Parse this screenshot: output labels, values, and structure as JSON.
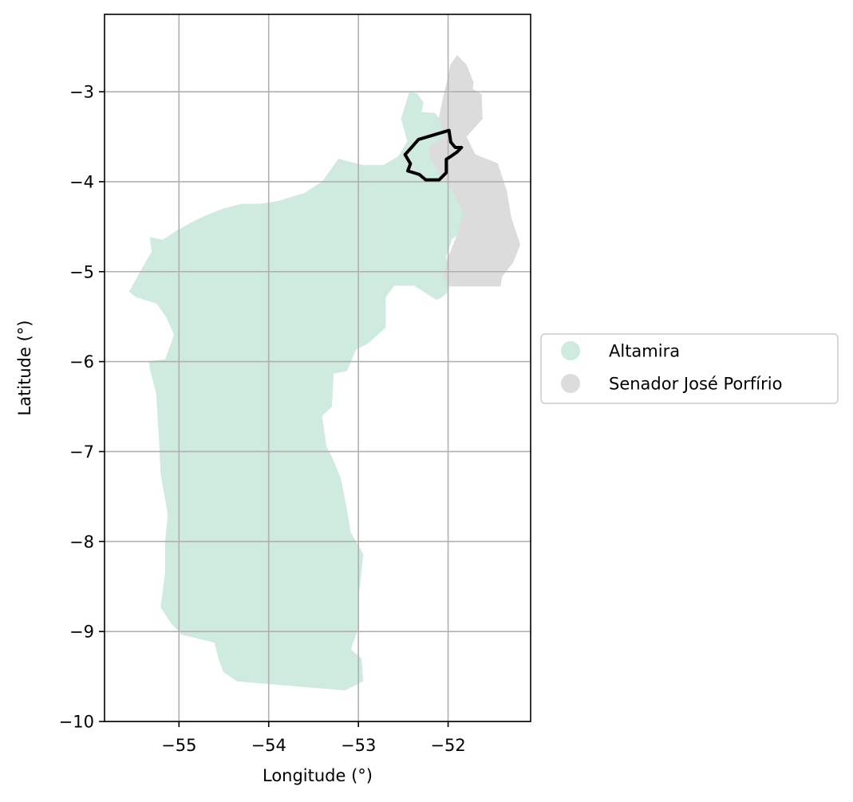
{
  "chart_data": {
    "type": "map",
    "xlabel": "Longitude (°)",
    "ylabel": "Latitude (°)",
    "xlim": [
      -55.83,
      -51.08
    ],
    "ylim": [
      -10,
      -2.14
    ],
    "xticks": [
      -55,
      -54,
      -53,
      -52
    ],
    "xtick_labels": [
      "−55",
      "−54",
      "−53",
      "−52"
    ],
    "yticks": [
      -3,
      -4,
      -5,
      -6,
      -7,
      -8,
      -9,
      -10
    ],
    "ytick_labels": [
      "−3",
      "−4",
      "−5",
      "−6",
      "−7",
      "−8",
      "−9",
      "−10"
    ],
    "grid": true,
    "legend": {
      "placement": "center-right, outside axes",
      "entries": [
        {
          "name": "Altamira",
          "color": "#cfeade"
        },
        {
          "name": "Senador José Porfírio",
          "color": "#dcdcdc"
        }
      ]
    },
    "regions": [
      {
        "name": "Altamira",
        "color": "#cfeade",
        "outline": [
          [
            -52.43,
            -3.01
          ],
          [
            -52.35,
            -3.02
          ],
          [
            -52.28,
            -3.12
          ],
          [
            -52.3,
            -3.23
          ],
          [
            -52.15,
            -3.24
          ],
          [
            -52.05,
            -3.36
          ],
          [
            -51.9,
            -3.6
          ],
          [
            -51.87,
            -3.9
          ],
          [
            -51.78,
            -4.18
          ],
          [
            -51.65,
            -4.41
          ],
          [
            -51.8,
            -4.5
          ],
          [
            -51.96,
            -4.64
          ],
          [
            -52.03,
            -4.83
          ],
          [
            -51.98,
            -5.02
          ],
          [
            -52.0,
            -5.22
          ],
          [
            -52.07,
            -5.28
          ],
          [
            -52.13,
            -5.31
          ],
          [
            -52.38,
            -5.15
          ],
          [
            -52.6,
            -5.15
          ],
          [
            -52.7,
            -5.28
          ],
          [
            -52.7,
            -5.62
          ],
          [
            -52.9,
            -5.8
          ],
          [
            -53.03,
            -5.86
          ],
          [
            -53.13,
            -6.1
          ],
          [
            -53.28,
            -6.13
          ],
          [
            -53.3,
            -6.5
          ],
          [
            -53.41,
            -6.6
          ],
          [
            -53.36,
            -6.95
          ],
          [
            -53.3,
            -7.06
          ],
          [
            -53.2,
            -7.3
          ],
          [
            -53.14,
            -7.6
          ],
          [
            -53.09,
            -7.9
          ],
          [
            -52.95,
            -8.14
          ],
          [
            -53.0,
            -8.6
          ],
          [
            -53.0,
            -8.95
          ],
          [
            -53.09,
            -9.2
          ],
          [
            -52.97,
            -9.3
          ],
          [
            -52.95,
            -9.55
          ],
          [
            -53.15,
            -9.65
          ],
          [
            -54.35,
            -9.55
          ],
          [
            -54.5,
            -9.45
          ],
          [
            -54.55,
            -9.32
          ],
          [
            -54.6,
            -9.12
          ],
          [
            -54.97,
            -9.03
          ],
          [
            -55.09,
            -8.9
          ],
          [
            -55.2,
            -8.73
          ],
          [
            -55.15,
            -8.35
          ],
          [
            -55.15,
            -8.0
          ],
          [
            -55.12,
            -7.7
          ],
          [
            -55.2,
            -7.25
          ],
          [
            -55.22,
            -6.85
          ],
          [
            -55.25,
            -6.35
          ],
          [
            -55.32,
            -6.08
          ],
          [
            -55.33,
            -6.0
          ],
          [
            -55.15,
            -5.98
          ],
          [
            -55.05,
            -5.7
          ],
          [
            -55.14,
            -5.5
          ],
          [
            -55.25,
            -5.35
          ],
          [
            -55.48,
            -5.28
          ],
          [
            -55.55,
            -5.22
          ],
          [
            -55.4,
            -4.95
          ],
          [
            -55.3,
            -4.78
          ],
          [
            -55.32,
            -4.62
          ],
          [
            -55.18,
            -4.65
          ],
          [
            -55.03,
            -4.55
          ],
          [
            -54.85,
            -4.45
          ],
          [
            -54.7,
            -4.38
          ],
          [
            -54.5,
            -4.3
          ],
          [
            -54.3,
            -4.25
          ],
          [
            -54.1,
            -4.25
          ],
          [
            -53.9,
            -4.22
          ],
          [
            -53.6,
            -4.13
          ],
          [
            -53.4,
            -4.0
          ],
          [
            -53.22,
            -3.75
          ],
          [
            -52.95,
            -3.82
          ],
          [
            -52.72,
            -3.82
          ],
          [
            -52.55,
            -3.72
          ],
          [
            -52.45,
            -3.55
          ],
          [
            -52.52,
            -3.3
          ],
          [
            -52.43,
            -3.01
          ]
        ]
      },
      {
        "name": "Senador José Porfírio",
        "color": "#dcdcdc",
        "outline": [
          [
            -51.9,
            -2.6
          ],
          [
            -51.8,
            -2.7
          ],
          [
            -51.72,
            -2.9
          ],
          [
            -51.73,
            -2.97
          ],
          [
            -51.63,
            -3.03
          ],
          [
            -51.62,
            -3.3
          ],
          [
            -51.8,
            -3.5
          ],
          [
            -51.7,
            -3.7
          ],
          [
            -51.45,
            -3.8
          ],
          [
            -51.35,
            -4.1
          ],
          [
            -51.3,
            -4.4
          ],
          [
            -51.2,
            -4.7
          ],
          [
            -51.28,
            -4.9
          ],
          [
            -51.4,
            -5.05
          ],
          [
            -51.42,
            -5.16
          ],
          [
            -51.65,
            -5.16
          ],
          [
            -52.0,
            -5.16
          ],
          [
            -52.05,
            -5.05
          ],
          [
            -52.0,
            -4.85
          ],
          [
            -51.88,
            -4.55
          ],
          [
            -51.83,
            -4.33
          ],
          [
            -51.95,
            -4.1
          ],
          [
            -52.1,
            -3.9
          ],
          [
            -52.2,
            -3.72
          ],
          [
            -52.2,
            -3.6
          ],
          [
            -52.05,
            -3.5
          ],
          [
            -52.1,
            -3.3
          ],
          [
            -52.05,
            -3.05
          ],
          [
            -52.0,
            -2.85
          ],
          [
            -51.97,
            -2.7
          ],
          [
            -51.9,
            -2.6
          ]
        ]
      }
    ],
    "highlight_boundary": {
      "color": "#000000",
      "outline": [
        [
          -51.99,
          -3.43
        ],
        [
          -52.33,
          -3.53
        ],
        [
          -52.4,
          -3.61
        ],
        [
          -52.48,
          -3.7
        ],
        [
          -52.42,
          -3.8
        ],
        [
          -52.45,
          -3.88
        ],
        [
          -52.32,
          -3.92
        ],
        [
          -52.25,
          -3.98
        ],
        [
          -52.1,
          -3.98
        ],
        [
          -52.02,
          -3.9
        ],
        [
          -52.02,
          -3.75
        ],
        [
          -51.97,
          -3.72
        ],
        [
          -51.9,
          -3.67
        ],
        [
          -51.85,
          -3.62
        ],
        [
          -51.92,
          -3.62
        ],
        [
          -51.97,
          -3.56
        ],
        [
          -51.99,
          -3.43
        ]
      ]
    }
  }
}
